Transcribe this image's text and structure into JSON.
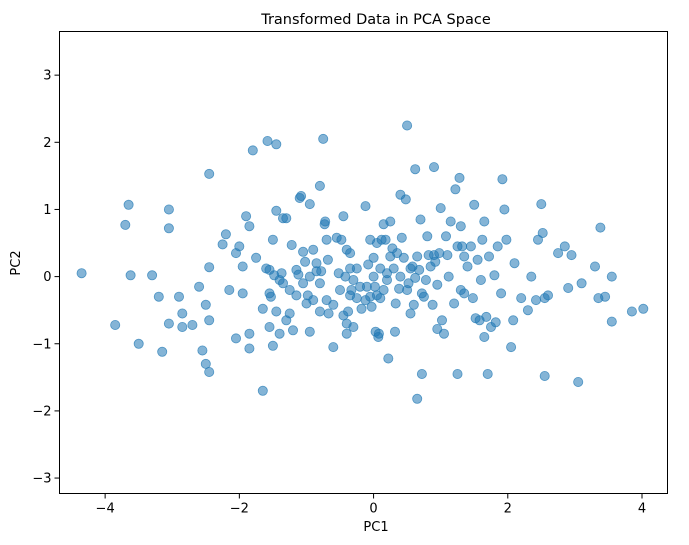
{
  "chart_data": {
    "type": "scatter",
    "title": "Transformed Data in PCA Space",
    "xlabel": "PC1",
    "ylabel": "PC2",
    "xlim": [
      -4.68,
      4.38
    ],
    "ylim": [
      -3.23,
      3.65
    ],
    "xticks": [
      -4,
      -2,
      0,
      2,
      4
    ],
    "yticks": [
      -3,
      -2,
      -1,
      0,
      1,
      2,
      3
    ],
    "grid": false,
    "marker_color": "#1f77b4",
    "marker_alpha": 0.55,
    "series": [
      {
        "points": [
          [
            -4.35,
            0.05
          ],
          [
            -3.85,
            -0.72
          ],
          [
            -3.7,
            0.77
          ],
          [
            -3.65,
            1.07
          ],
          [
            -3.62,
            0.02
          ],
          [
            -3.5,
            -1.0
          ],
          [
            -3.3,
            0.02
          ],
          [
            -3.2,
            -0.3
          ],
          [
            -3.15,
            -1.12
          ],
          [
            -3.05,
            1.0
          ],
          [
            -3.05,
            0.72
          ],
          [
            -3.05,
            -0.7
          ],
          [
            -2.9,
            -0.3
          ],
          [
            -2.85,
            -0.55
          ],
          [
            -2.85,
            -0.75
          ],
          [
            -2.7,
            -0.72
          ],
          [
            -2.6,
            -0.15
          ],
          [
            -2.55,
            -1.1
          ],
          [
            -2.5,
            -1.3
          ],
          [
            -2.5,
            -0.42
          ],
          [
            -2.45,
            1.53
          ],
          [
            -2.45,
            0.14
          ],
          [
            -2.45,
            -0.65
          ],
          [
            -2.45,
            -1.42
          ],
          [
            -2.25,
            0.48
          ],
          [
            -2.2,
            0.63
          ],
          [
            -2.15,
            -0.2
          ],
          [
            -2.05,
            0.35
          ],
          [
            -2.05,
            -0.92
          ],
          [
            -2.0,
            0.45
          ],
          [
            -1.95,
            0.15
          ],
          [
            -1.95,
            -0.25
          ],
          [
            -1.9,
            0.9
          ],
          [
            -1.85,
            0.75
          ],
          [
            -1.85,
            -0.85
          ],
          [
            -1.85,
            -1.07
          ],
          [
            -1.8,
            1.88
          ],
          [
            -1.75,
            0.28
          ],
          [
            -1.65,
            -0.48
          ],
          [
            -1.65,
            -1.7
          ],
          [
            -1.6,
            0.12
          ],
          [
            -1.58,
            2.02
          ],
          [
            -1.55,
            0.1
          ],
          [
            -1.55,
            -0.25
          ],
          [
            -1.55,
            -0.75
          ],
          [
            -1.53,
            -0.3
          ],
          [
            -1.5,
            -1.03
          ],
          [
            -1.5,
            0.55
          ],
          [
            -1.48,
            0.02
          ],
          [
            -1.45,
            1.97
          ],
          [
            -1.45,
            0.98
          ],
          [
            -1.45,
            -0.52
          ],
          [
            -1.4,
            -0.85
          ],
          [
            -1.4,
            -0.05
          ],
          [
            -1.37,
            0.05
          ],
          [
            -1.35,
            -0.1
          ],
          [
            -1.35,
            0.87
          ],
          [
            -1.3,
            0.87
          ],
          [
            -1.3,
            -0.65
          ],
          [
            -1.25,
            -0.2
          ],
          [
            -1.25,
            -0.55
          ],
          [
            -1.22,
            0.47
          ],
          [
            -1.2,
            -0.8
          ],
          [
            -1.15,
            0.1
          ],
          [
            -1.15,
            -0.28
          ],
          [
            -1.12,
            0.03
          ],
          [
            -1.1,
            1.17
          ],
          [
            -1.08,
            1.2
          ],
          [
            -1.05,
            0.37
          ],
          [
            -1.05,
            -0.1
          ],
          [
            -1.02,
            0.22
          ],
          [
            -1.0,
            -0.4
          ],
          [
            -0.98,
            -0.28
          ],
          [
            -0.95,
            0.0
          ],
          [
            -0.95,
            1.08
          ],
          [
            -0.95,
            -0.82
          ],
          [
            -0.9,
            0.4
          ],
          [
            -0.9,
            -0.35
          ],
          [
            -0.85,
            0.2
          ],
          [
            -0.85,
            0.08
          ],
          [
            -0.8,
            1.35
          ],
          [
            -0.8,
            -0.1
          ],
          [
            -0.8,
            -0.52
          ],
          [
            -0.78,
            0.08
          ],
          [
            -0.75,
            2.05
          ],
          [
            -0.73,
            0.78
          ],
          [
            -0.72,
            0.82
          ],
          [
            -0.7,
            0.55
          ],
          [
            -0.7,
            -0.35
          ],
          [
            -0.68,
            0.25
          ],
          [
            -0.67,
            -0.55
          ],
          [
            -0.6,
            -1.05
          ],
          [
            -0.6,
            -0.42
          ],
          [
            -0.55,
            0.58
          ],
          [
            -0.52,
            0.05
          ],
          [
            -0.5,
            -0.2
          ],
          [
            -0.48,
            0.55
          ],
          [
            -0.45,
            0.9
          ],
          [
            -0.45,
            -0.58
          ],
          [
            -0.42,
            0.0
          ],
          [
            -0.4,
            -0.7
          ],
          [
            -0.4,
            -0.85
          ],
          [
            -0.4,
            0.4
          ],
          [
            -0.38,
            -0.52
          ],
          [
            -0.35,
            0.35
          ],
          [
            -0.35,
            -0.28
          ],
          [
            -0.35,
            0.12
          ],
          [
            -0.33,
            -0.2
          ],
          [
            -0.3,
            -0.05
          ],
          [
            -0.3,
            -0.75
          ],
          [
            -0.25,
            -0.32
          ],
          [
            -0.25,
            0.12
          ],
          [
            -0.2,
            -0.15
          ],
          [
            -0.18,
            -0.48
          ],
          [
            -0.12,
            -0.35
          ],
          [
            -0.12,
            1.05
          ],
          [
            -0.1,
            -0.15
          ],
          [
            -0.08,
            0.18
          ],
          [
            -0.05,
            0.55
          ],
          [
            -0.05,
            -0.3
          ],
          [
            -0.03,
            -0.45
          ],
          [
            0.0,
            0.0
          ],
          [
            0.0,
            0.28
          ],
          [
            0.02,
            -0.15
          ],
          [
            0.03,
            -0.82
          ],
          [
            0.05,
            -0.28
          ],
          [
            0.05,
            0.5
          ],
          [
            0.07,
            -0.9
          ],
          [
            0.08,
            -0.85
          ],
          [
            0.1,
            0.12
          ],
          [
            0.1,
            -0.32
          ],
          [
            0.12,
            0.55
          ],
          [
            0.15,
            0.78
          ],
          [
            0.15,
            -0.2
          ],
          [
            0.18,
            0.55
          ],
          [
            0.2,
            0.05
          ],
          [
            0.2,
            -0.05
          ],
          [
            0.22,
            -1.22
          ],
          [
            0.25,
            0.82
          ],
          [
            0.25,
            0.3
          ],
          [
            0.28,
            0.42
          ],
          [
            0.3,
            0.12
          ],
          [
            0.32,
            -0.82
          ],
          [
            0.33,
            -0.4
          ],
          [
            0.35,
            0.35
          ],
          [
            0.38,
            -0.18
          ],
          [
            0.4,
            0.0
          ],
          [
            0.4,
            1.22
          ],
          [
            0.42,
            0.58
          ],
          [
            0.45,
            0.28
          ],
          [
            0.48,
            1.15
          ],
          [
            0.5,
            -0.2
          ],
          [
            0.5,
            2.25
          ],
          [
            0.52,
            -0.1
          ],
          [
            0.55,
            0.12
          ],
          [
            0.55,
            -0.55
          ],
          [
            0.58,
            0.15
          ],
          [
            0.6,
            -0.42
          ],
          [
            0.62,
            1.6
          ],
          [
            0.62,
            -0.02
          ],
          [
            0.65,
            -1.82
          ],
          [
            0.65,
            0.3
          ],
          [
            0.68,
            0.1
          ],
          [
            0.7,
            0.85
          ],
          [
            0.72,
            -1.45
          ],
          [
            0.72,
            -0.25
          ],
          [
            0.75,
            -0.3
          ],
          [
            0.78,
            -0.05
          ],
          [
            0.8,
            0.6
          ],
          [
            0.82,
            0.32
          ],
          [
            0.85,
            0.15
          ],
          [
            0.88,
            -0.42
          ],
          [
            0.9,
            1.63
          ],
          [
            0.9,
            0.32
          ],
          [
            0.92,
            0.22
          ],
          [
            0.95,
            -0.12
          ],
          [
            0.95,
            -0.78
          ],
          [
            0.98,
            0.35
          ],
          [
            1.0,
            1.02
          ],
          [
            1.02,
            -0.65
          ],
          [
            1.05,
            -0.85
          ],
          [
            1.08,
            0.6
          ],
          [
            1.1,
            0.32
          ],
          [
            1.12,
            0.0
          ],
          [
            1.15,
            0.82
          ],
          [
            1.2,
            -0.4
          ],
          [
            1.22,
            1.3
          ],
          [
            1.25,
            0.45
          ],
          [
            1.25,
            -1.45
          ],
          [
            1.28,
            1.47
          ],
          [
            1.3,
            0.75
          ],
          [
            1.3,
            -0.2
          ],
          [
            1.32,
            0.45
          ],
          [
            1.35,
            0.3
          ],
          [
            1.35,
            -0.25
          ],
          [
            1.4,
            0.15
          ],
          [
            1.45,
            0.45
          ],
          [
            1.48,
            -0.32
          ],
          [
            1.5,
            1.07
          ],
          [
            1.52,
            -0.62
          ],
          [
            1.55,
            0.25
          ],
          [
            1.58,
            -0.65
          ],
          [
            1.6,
            -0.05
          ],
          [
            1.62,
            0.55
          ],
          [
            1.65,
            0.82
          ],
          [
            1.65,
            -0.9
          ],
          [
            1.68,
            -0.6
          ],
          [
            1.7,
            -1.45
          ],
          [
            1.72,
            0.3
          ],
          [
            1.75,
            -0.75
          ],
          [
            1.8,
            0.02
          ],
          [
            1.82,
            -0.68
          ],
          [
            1.85,
            0.45
          ],
          [
            1.9,
            -0.25
          ],
          [
            1.92,
            1.45
          ],
          [
            1.95,
            1.0
          ],
          [
            1.98,
            0.55
          ],
          [
            2.05,
            -1.05
          ],
          [
            2.08,
            -0.65
          ],
          [
            2.1,
            0.2
          ],
          [
            2.2,
            -0.32
          ],
          [
            2.3,
            -0.5
          ],
          [
            2.35,
            0.0
          ],
          [
            2.42,
            -0.35
          ],
          [
            2.45,
            0.55
          ],
          [
            2.5,
            1.08
          ],
          [
            2.52,
            0.65
          ],
          [
            2.55,
            -0.32
          ],
          [
            2.55,
            -1.48
          ],
          [
            2.6,
            -0.28
          ],
          [
            2.75,
            0.35
          ],
          [
            2.85,
            0.45
          ],
          [
            2.9,
            -0.17
          ],
          [
            2.95,
            0.32
          ],
          [
            3.05,
            -1.57
          ],
          [
            3.1,
            -0.1
          ],
          [
            3.3,
            0.15
          ],
          [
            3.35,
            -0.32
          ],
          [
            3.38,
            0.73
          ],
          [
            3.45,
            -0.3
          ],
          [
            3.55,
            0.0
          ],
          [
            3.55,
            -0.67
          ],
          [
            3.85,
            -0.52
          ],
          [
            4.02,
            -0.48
          ]
        ]
      }
    ]
  }
}
